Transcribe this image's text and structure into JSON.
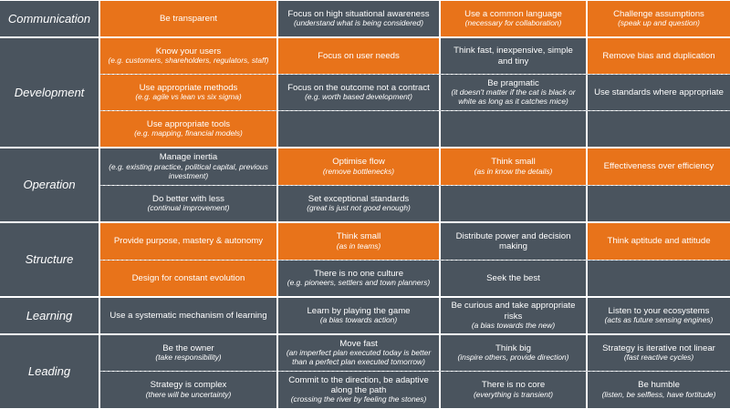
{
  "colors": {
    "orange": "#e8731a",
    "gray": "#4a545e"
  },
  "rows": [
    {
      "category": "Communication",
      "subrows": [
        [
          {
            "title": "Be transparent",
            "sub": "",
            "color": "orange"
          },
          {
            "title": "Focus on high situational awareness",
            "sub": "(understand what is being considered)",
            "color": "gray"
          },
          {
            "title": "Use a common language",
            "sub": "(necessary for collaboration)",
            "color": "orange"
          },
          {
            "title": "Challenge assumptions",
            "sub": "(speak up and question)",
            "color": "orange"
          }
        ]
      ]
    },
    {
      "category": "Development",
      "subrows": [
        [
          {
            "title": "Know your users",
            "sub": "(e.g. customers, shareholders, regulators, staff)",
            "color": "orange"
          },
          {
            "title": "Focus on user needs",
            "sub": "",
            "color": "orange"
          },
          {
            "title": "Think fast, inexpensive, simple and tiny",
            "sub": "",
            "color": "gray"
          },
          {
            "title": "Remove bias and duplication",
            "sub": "",
            "color": "orange"
          }
        ],
        [
          {
            "title": "Use appropriate methods",
            "sub": "(e.g. agile vs lean vs six sigma)",
            "color": "orange"
          },
          {
            "title": "Focus on the outcome not a contract",
            "sub": "(e.g. worth based development)",
            "color": "gray"
          },
          {
            "title": "Be pragmatic",
            "sub": "(it doesn't matter if the cat is black or white as long as it catches mice)",
            "color": "gray"
          },
          {
            "title": "Use standards where appropriate",
            "sub": "",
            "color": "gray"
          }
        ],
        [
          {
            "title": "Use appropriate tools",
            "sub": "(e.g. mapping, financial models)",
            "color": "orange"
          },
          {
            "title": "",
            "sub": "",
            "color": "gray"
          },
          {
            "title": "",
            "sub": "",
            "color": "gray"
          },
          {
            "title": "",
            "sub": "",
            "color": "gray"
          }
        ]
      ]
    },
    {
      "category": "Operation",
      "subrows": [
        [
          {
            "title": "Manage inertia",
            "sub": "(e.g. existing practice, political capital, previous investment)",
            "color": "gray"
          },
          {
            "title": "Optimise flow",
            "sub": "(remove bottlenecks)",
            "color": "orange"
          },
          {
            "title": "Think small",
            "sub": "(as in know the details)",
            "color": "orange"
          },
          {
            "title": "Effectiveness over efficiency",
            "sub": "",
            "color": "orange"
          }
        ],
        [
          {
            "title": "Do better with less",
            "sub": "(continual improvement)",
            "color": "gray"
          },
          {
            "title": "Set exceptional standards",
            "sub": "(great is just not good enough)",
            "color": "gray"
          },
          {
            "title": "",
            "sub": "",
            "color": "gray"
          },
          {
            "title": "",
            "sub": "",
            "color": "gray"
          }
        ]
      ]
    },
    {
      "category": "Structure",
      "subrows": [
        [
          {
            "title": "Provide purpose, mastery & autonomy",
            "sub": "",
            "color": "orange"
          },
          {
            "title": "Think small",
            "sub": "(as in teams)",
            "color": "orange"
          },
          {
            "title": "Distribute power and decision making",
            "sub": "",
            "color": "gray"
          },
          {
            "title": "Think aptitude and attitude",
            "sub": "",
            "color": "orange"
          }
        ],
        [
          {
            "title": "Design for constant evolution",
            "sub": "",
            "color": "orange"
          },
          {
            "title": "There is no one culture",
            "sub": "(e.g. pioneers, settlers and town planners)",
            "color": "gray"
          },
          {
            "title": "Seek the best",
            "sub": "",
            "color": "gray"
          },
          {
            "title": "",
            "sub": "",
            "color": "gray"
          }
        ]
      ]
    },
    {
      "category": "Learning",
      "subrows": [
        [
          {
            "title": "Use a systematic mechanism of learning",
            "sub": "",
            "color": "gray"
          },
          {
            "title": "Learn by playing the game",
            "sub": "(a bias towards action)",
            "color": "gray"
          },
          {
            "title": "Be curious and take appropriate risks",
            "sub": "(a bias towards the new)",
            "color": "gray"
          },
          {
            "title": "Listen to your ecosystems",
            "sub": "(acts as future sensing engines)",
            "color": "gray"
          }
        ]
      ]
    },
    {
      "category": "Leading",
      "subrows": [
        [
          {
            "title": "Be the owner",
            "sub": "(take responsibility)",
            "color": "gray"
          },
          {
            "title": "Move fast",
            "sub": "(an imperfect plan executed today is better than a perfect plan executed tomorrow)",
            "color": "gray"
          },
          {
            "title": "Think big",
            "sub": "(inspire others, provide direction)",
            "color": "gray"
          },
          {
            "title": "Strategy is iterative not linear",
            "sub": "(fast reactive cycles)",
            "color": "gray"
          }
        ],
        [
          {
            "title": "Strategy is complex",
            "sub": "(there will be uncertainty)",
            "color": "gray"
          },
          {
            "title": "Commit to the direction, be adaptive along the path",
            "sub": "(crossing the river by feeling the stones)",
            "color": "gray"
          },
          {
            "title": "There is no core",
            "sub": "(everything is transient)",
            "color": "gray"
          },
          {
            "title": "Be humble",
            "sub": "(listen, be selfless, have fortitude)",
            "color": "gray"
          }
        ]
      ]
    }
  ]
}
